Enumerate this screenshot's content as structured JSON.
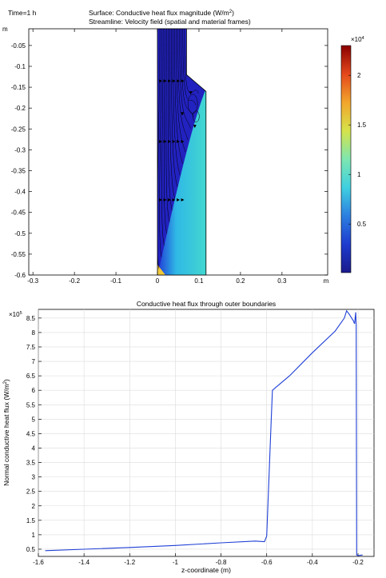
{
  "chart_data": [
    {
      "type": "heatmap",
      "time_label": "Time=1 h",
      "title_prefix": "Surface: Conductive heat flux magnitude (W/m",
      "title_exp": "2",
      "title_suffix": ")",
      "subtitle": "Streamline: Velocity field (spatial and material frames)",
      "x_unit": "m",
      "y_unit": "m",
      "xlim": [
        -0.31,
        0.41
      ],
      "ylim": [
        -0.6,
        -0.01
      ],
      "x_ticks": [
        "-0.3",
        "-0.2",
        "-0.1",
        "0",
        "0.1",
        "0.2",
        "0.3"
      ],
      "x_tick_values": [
        -0.3,
        -0.2,
        -0.1,
        0,
        0.1,
        0.2,
        0.3
      ],
      "y_ticks": [
        "-0.05",
        "-0.1",
        "-0.15",
        "-0.2",
        "-0.25",
        "-0.3",
        "-0.35",
        "-0.4",
        "-0.45",
        "-0.5",
        "-0.55",
        "-0.6"
      ],
      "y_tick_values": [
        -0.05,
        -0.1,
        -0.15,
        -0.2,
        -0.25,
        -0.3,
        -0.35,
        -0.4,
        -0.45,
        -0.5,
        -0.55,
        -0.6
      ],
      "domain_outline": [
        [
          0,
          -0.01
        ],
        [
          0.07,
          -0.01
        ],
        [
          0.07,
          -0.12
        ],
        [
          0.117,
          -0.16
        ],
        [
          0.117,
          -0.6
        ],
        [
          0,
          -0.6
        ]
      ],
      "colorbar": {
        "multiplier_base": "×10",
        "multiplier_exp": "4",
        "ticks": [
          "2",
          "1.5",
          "1",
          "0.5"
        ],
        "tick_values": [
          2,
          1.5,
          1,
          0.5
        ],
        "range": [
          0.01,
          2.3
        ],
        "colors": [
          "#1a1a8c",
          "#1e3ccf",
          "#2d7fe0",
          "#3fd0e0",
          "#7ee6b0",
          "#d6e34a",
          "#f2a52c",
          "#e4481c",
          "#8a0000"
        ]
      },
      "colors": {
        "plume": "#3bd3d3",
        "body": "#2222c0",
        "streamline": "#000000"
      }
    },
    {
      "type": "line",
      "title": "Conductive heat flux through outer boundaries",
      "xlabel": "z-coordinate (m)",
      "ylabel_prefix": "Normal conductive heat flux (W/m",
      "ylabel_exp": "2",
      "ylabel_suffix": ")",
      "multiplier_base": "×10",
      "multiplier_exp": "5",
      "xlim": [
        -1.6,
        -0.13
      ],
      "ylim": [
        0.25,
        8.8
      ],
      "x_ticks": [
        "-1.6",
        "-1.4",
        "-1.2",
        "-1",
        "-0.8",
        "-0.6",
        "-0.4",
        "-0.2"
      ],
      "x_tick_values": [
        -1.6,
        -1.4,
        -1.2,
        -1.0,
        -0.8,
        -0.6,
        -0.4,
        -0.2
      ],
      "y_ticks": [
        "0.5",
        "1",
        "1.5",
        "2",
        "2.5",
        "3",
        "3.5",
        "4",
        "4.5",
        "5",
        "5.5",
        "6",
        "6.5",
        "7",
        "7.5",
        "8",
        "8.5"
      ],
      "y_tick_values": [
        0.5,
        1,
        1.5,
        2,
        2.5,
        3,
        3.5,
        4,
        4.5,
        5,
        5.5,
        6,
        6.5,
        7,
        7.5,
        8,
        8.5
      ],
      "series": [
        {
          "color": "#1f3fd6",
          "x": [
            -1.57,
            -1.4,
            -1.2,
            -1.0,
            -0.8,
            -0.65,
            -0.61,
            -0.6,
            -0.59,
            -0.58,
            -0.575,
            -0.56,
            -0.5,
            -0.4,
            -0.3,
            -0.26,
            -0.25,
            -0.24,
            -0.22,
            -0.215,
            -0.21,
            -0.208,
            -0.206,
            -0.2,
            -0.18
          ],
          "y": [
            0.45,
            0.5,
            0.56,
            0.63,
            0.72,
            0.78,
            0.76,
            0.95,
            3.0,
            5.0,
            6.0,
            6.1,
            6.5,
            7.3,
            8.05,
            8.5,
            8.75,
            8.65,
            8.4,
            8.3,
            8.7,
            8.25,
            0.3,
            0.28,
            0.3
          ]
        }
      ],
      "grid": true
    }
  ]
}
